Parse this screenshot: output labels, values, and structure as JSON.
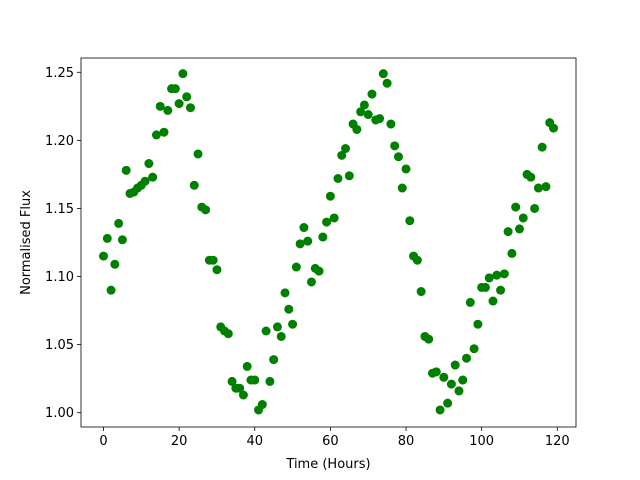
{
  "chart_data": {
    "type": "scatter",
    "xlabel": "Time (Hours)",
    "ylabel": "Normalised Flux",
    "color": "#008000",
    "x": [
      0,
      1,
      2,
      3,
      4,
      5,
      6,
      7,
      8,
      9,
      10,
      11,
      12,
      13,
      14,
      15,
      16,
      17,
      18,
      19,
      20,
      21,
      22,
      23,
      24,
      25,
      26,
      27,
      28,
      29,
      30,
      31,
      32,
      33,
      34,
      35,
      36,
      37,
      38,
      39,
      40,
      41,
      42,
      43,
      44,
      45,
      46,
      47,
      48,
      49,
      50,
      51,
      52,
      53,
      54,
      55,
      56,
      57,
      58,
      59,
      60,
      61,
      62,
      63,
      64,
      65,
      66,
      67,
      68,
      69,
      70,
      71,
      72,
      73,
      74,
      75,
      76,
      77,
      78,
      79,
      80,
      81,
      82,
      83,
      84,
      85,
      86,
      87,
      88,
      89,
      90,
      91,
      92,
      93,
      94,
      95,
      96,
      97,
      98,
      99,
      100,
      101,
      102,
      103,
      104,
      105,
      106,
      107,
      108,
      109,
      110,
      111,
      112,
      113,
      114,
      115,
      116,
      117,
      118,
      119
    ],
    "values": [
      1.115,
      1.128,
      1.09,
      1.109,
      1.139,
      1.127,
      1.178,
      1.161,
      1.162,
      1.165,
      1.167,
      1.17,
      1.183,
      1.173,
      1.204,
      1.225,
      1.206,
      1.222,
      1.238,
      1.238,
      1.227,
      1.249,
      1.232,
      1.224,
      1.167,
      1.19,
      1.151,
      1.149,
      1.112,
      1.112,
      1.105,
      1.063,
      1.06,
      1.058,
      1.023,
      1.018,
      1.018,
      1.013,
      1.034,
      1.024,
      1.024,
      1.002,
      1.006,
      1.06,
      1.023,
      1.039,
      1.063,
      1.056,
      1.088,
      1.076,
      1.065,
      1.107,
      1.124,
      1.136,
      1.126,
      1.096,
      1.106,
      1.104,
      1.129,
      1.14,
      1.159,
      1.143,
      1.172,
      1.189,
      1.194,
      1.174,
      1.212,
      1.208,
      1.221,
      1.226,
      1.219,
      1.234,
      1.215,
      1.216,
      1.249,
      1.242,
      1.212,
      1.196,
      1.188,
      1.165,
      1.179,
      1.141,
      1.115,
      1.112,
      1.089,
      1.056,
      1.054,
      1.029,
      1.03,
      1.002,
      1.026,
      1.007,
      1.021,
      1.035,
      1.016,
      1.024,
      1.04,
      1.081,
      1.047,
      1.065,
      1.092,
      1.092,
      1.099,
      1.082,
      1.101,
      1.09,
      1.102,
      1.133,
      1.117,
      1.151,
      1.135,
      1.143,
      1.175,
      1.173,
      1.15,
      1.165,
      1.195,
      1.166,
      1.213,
      1.209
    ],
    "xlim": [
      -5.95,
      124.95
    ],
    "ylim": [
      0.9895,
      1.2605
    ],
    "xticks": [
      0,
      20,
      40,
      60,
      80,
      100,
      120
    ],
    "yticks": [
      {
        "value": 1.0,
        "label": "1.00"
      },
      1.05,
      {
        "value": 1.1,
        "label": "1.10"
      },
      1.15,
      {
        "value": 1.2,
        "label": "1.20"
      },
      1.25
    ]
  }
}
